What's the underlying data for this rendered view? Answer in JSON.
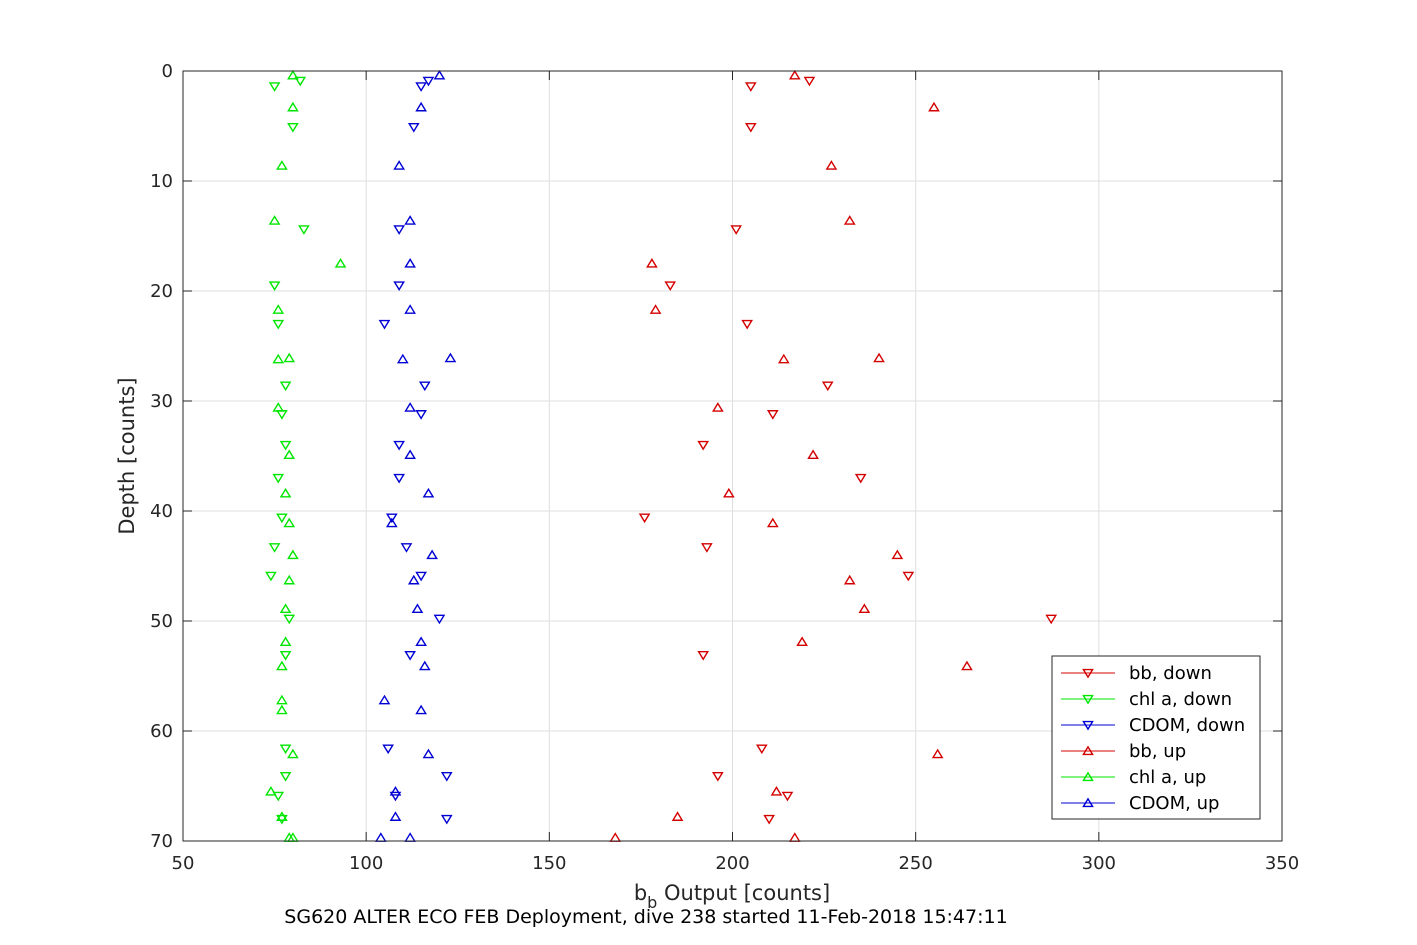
{
  "chart_data": {
    "type": "scatter",
    "xlabel": "b_b Output [counts]",
    "xlabel_main": "b",
    "xlabel_sub": "b",
    "xlabel_rest": " Output [counts]",
    "ylabel": "Depth [counts]",
    "caption": "SG620 ALTER ECO FEB Deployment, dive 238 started 11-Feb-2018 15:47:11",
    "xlim": [
      50,
      350
    ],
    "ylim": [
      0,
      70
    ],
    "y_reversed": true,
    "grid": true,
    "legend_position": "bottom-right",
    "xticks": [
      "50",
      "100",
      "150",
      "200",
      "250",
      "300",
      "350"
    ],
    "yticks": [
      "0",
      "10",
      "20",
      "30",
      "40",
      "50",
      "60",
      "70"
    ],
    "series": [
      {
        "name": "bb, down",
        "color": "#d40000",
        "marker": "triangle-down",
        "points": [
          [
            221,
            0.9
          ],
          [
            205,
            1.4
          ],
          [
            205,
            5.1
          ],
          [
            201,
            14.4
          ],
          [
            183,
            19.5
          ],
          [
            204,
            23
          ],
          [
            226,
            28.6
          ],
          [
            211,
            31.2
          ],
          [
            192,
            34
          ],
          [
            235,
            37
          ],
          [
            176,
            40.6
          ],
          [
            193,
            43.3
          ],
          [
            248,
            45.9
          ],
          [
            287,
            49.8
          ],
          [
            192,
            53.1
          ],
          [
            208,
            61.6
          ],
          [
            196,
            64.1
          ],
          [
            215,
            65.9
          ],
          [
            210,
            68
          ]
        ]
      },
      {
        "name": "chl a, down",
        "color": "#00e600",
        "marker": "triangle-down",
        "points": [
          [
            82,
            0.9
          ],
          [
            75,
            1.4
          ],
          [
            80,
            5.1
          ],
          [
            83,
            14.4
          ],
          [
            75,
            19.5
          ],
          [
            76,
            23
          ],
          [
            78,
            28.6
          ],
          [
            77,
            31.2
          ],
          [
            78,
            34
          ],
          [
            76,
            37
          ],
          [
            77,
            40.6
          ],
          [
            75,
            43.3
          ],
          [
            74,
            45.9
          ],
          [
            79,
            49.8
          ],
          [
            78,
            53.1
          ],
          [
            78,
            61.6
          ],
          [
            78,
            64.1
          ],
          [
            76,
            65.9
          ],
          [
            77,
            68
          ]
        ]
      },
      {
        "name": "CDOM, down",
        "color": "#0000d4",
        "marker": "triangle-down",
        "points": [
          [
            117,
            0.9
          ],
          [
            115,
            1.4
          ],
          [
            113,
            5.1
          ],
          [
            109,
            14.4
          ],
          [
            109,
            19.5
          ],
          [
            105,
            23
          ],
          [
            116,
            28.6
          ],
          [
            115,
            31.2
          ],
          [
            109,
            34
          ],
          [
            109,
            37
          ],
          [
            107,
            40.6
          ],
          [
            111,
            43.3
          ],
          [
            115,
            45.9
          ],
          [
            120,
            49.8
          ],
          [
            112,
            53.1
          ],
          [
            106,
            61.6
          ],
          [
            122,
            64.1
          ],
          [
            108,
            65.9
          ],
          [
            122,
            68
          ]
        ]
      },
      {
        "name": "bb, up",
        "color": "#d40000",
        "marker": "triangle-up",
        "points": [
          [
            217,
            0.4
          ],
          [
            255,
            3.3
          ],
          [
            227,
            8.6
          ],
          [
            232,
            13.6
          ],
          [
            178,
            17.5
          ],
          [
            179,
            21.7
          ],
          [
            240,
            26.1
          ],
          [
            214,
            26.2
          ],
          [
            196,
            30.6
          ],
          [
            222,
            34.9
          ],
          [
            199,
            38.4
          ],
          [
            211,
            41.1
          ],
          [
            245,
            44
          ],
          [
            232,
            46.3
          ],
          [
            236,
            48.9
          ],
          [
            219,
            51.9
          ],
          [
            264,
            54.1
          ],
          [
            256,
            62.1
          ],
          [
            212,
            65.5
          ],
          [
            185,
            67.8
          ],
          [
            168,
            69.7
          ],
          [
            217,
            69.7
          ]
        ]
      },
      {
        "name": "chl a, up",
        "color": "#00e600",
        "marker": "triangle-up",
        "points": [
          [
            80,
            0.4
          ],
          [
            80,
            3.3
          ],
          [
            77,
            8.6
          ],
          [
            75,
            13.6
          ],
          [
            93,
            17.5
          ],
          [
            76,
            21.7
          ],
          [
            79,
            26.1
          ],
          [
            76,
            26.2
          ],
          [
            76,
            30.6
          ],
          [
            79,
            34.9
          ],
          [
            78,
            38.4
          ],
          [
            79,
            41.1
          ],
          [
            80,
            44
          ],
          [
            79,
            46.3
          ],
          [
            78,
            48.9
          ],
          [
            78,
            51.9
          ],
          [
            77,
            54.1
          ],
          [
            77,
            57.2
          ],
          [
            77,
            58.1
          ],
          [
            80,
            62.1
          ],
          [
            74,
            65.5
          ],
          [
            77,
            67.8
          ],
          [
            79,
            69.7
          ],
          [
            80,
            69.7
          ]
        ]
      },
      {
        "name": "CDOM, up",
        "color": "#0000d4",
        "marker": "triangle-up",
        "points": [
          [
            120,
            0.4
          ],
          [
            115,
            3.3
          ],
          [
            109,
            8.6
          ],
          [
            112,
            13.6
          ],
          [
            112,
            17.5
          ],
          [
            112,
            21.7
          ],
          [
            123,
            26.1
          ],
          [
            110,
            26.2
          ],
          [
            112,
            30.6
          ],
          [
            112,
            34.9
          ],
          [
            117,
            38.4
          ],
          [
            107,
            41.1
          ],
          [
            118,
            44
          ],
          [
            113,
            46.3
          ],
          [
            114,
            48.9
          ],
          [
            115,
            51.9
          ],
          [
            116,
            54.1
          ],
          [
            105,
            57.2
          ],
          [
            115,
            58.1
          ],
          [
            117,
            62.1
          ],
          [
            108,
            65.5
          ],
          [
            108,
            67.8
          ],
          [
            104,
            69.7
          ],
          [
            112,
            69.7
          ]
        ]
      }
    ]
  }
}
